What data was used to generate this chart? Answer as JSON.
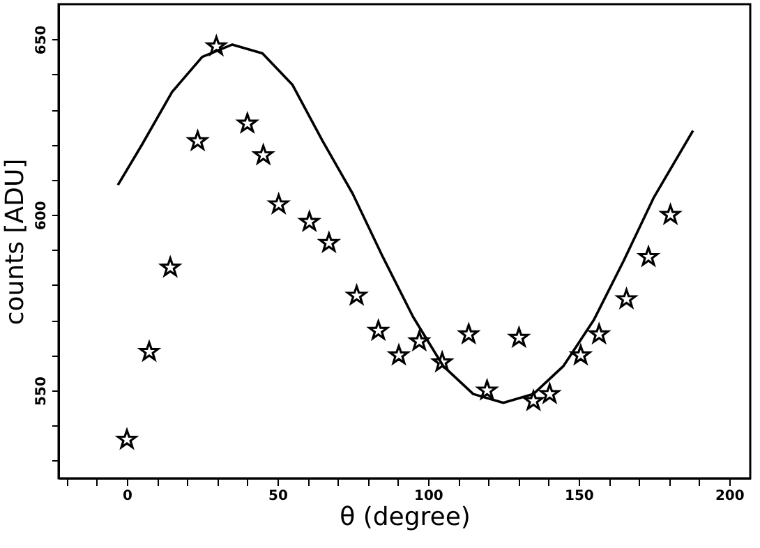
{
  "chart_data": {
    "type": "scatter",
    "xlabel": "θ (degree)",
    "ylabel": "counts [ADU]",
    "xlim": [
      -22.7,
      207
    ],
    "ylim": [
      525,
      660
    ],
    "xticks": [
      {
        "value": -20,
        "label": null
      },
      {
        "value": -10,
        "label": null
      },
      0,
      {
        "value": 10,
        "label": null
      },
      {
        "value": 20,
        "label": null
      },
      {
        "value": 30,
        "label": null
      },
      {
        "value": 40,
        "label": null
      },
      50,
      {
        "value": 60,
        "label": null
      },
      {
        "value": 70,
        "label": null
      },
      {
        "value": 80,
        "label": null
      },
      {
        "value": 90,
        "label": null
      },
      100,
      {
        "value": 110,
        "label": null
      },
      {
        "value": 120,
        "label": null
      },
      {
        "value": 130,
        "label": null
      },
      {
        "value": 140,
        "label": null
      },
      150,
      {
        "value": 160,
        "label": null
      },
      {
        "value": 170,
        "label": null
      },
      {
        "value": 180,
        "label": null
      },
      {
        "value": 190,
        "label": null
      },
      200
    ],
    "yticks": [
      {
        "value": 530,
        "label": null
      },
      {
        "value": 540,
        "label": null
      },
      550,
      {
        "value": 560,
        "label": null
      },
      {
        "value": 570,
        "label": null
      },
      {
        "value": 580,
        "label": null
      },
      {
        "value": 590,
        "label": null
      },
      600,
      {
        "value": 610,
        "label": null
      },
      {
        "value": 620,
        "label": null
      },
      {
        "value": 630,
        "label": null
      },
      {
        "value": 640,
        "label": null
      },
      650
    ],
    "grid": false,
    "series": [
      {
        "marker": "star",
        "color": "#000000",
        "x": [
          0,
          7.4,
          14.4,
          23.5,
          29.7,
          40,
          45.3,
          50.4,
          60.6,
          67.1,
          76.3,
          83.5,
          90.3,
          97.1,
          104.7,
          113.5,
          119.6,
          130.2,
          135,
          140.4,
          150.7,
          156.8,
          165.9,
          173.2,
          180.5
        ],
        "values": [
          536,
          561,
          585,
          621,
          648,
          626,
          617,
          603,
          598,
          592,
          577,
          567,
          560,
          564,
          558,
          566,
          550,
          565,
          547,
          549,
          560,
          566,
          576,
          588,
          600
        ]
      },
      {
        "type": "line",
        "marker": "none",
        "line_style": "solid",
        "color": "#000000",
        "x": [
          -3,
          5,
          15,
          25,
          35,
          45,
          55,
          65,
          75,
          85,
          95,
          105,
          115,
          125,
          135,
          145,
          155,
          165,
          175,
          188
        ],
        "values": [
          608.5,
          620,
          635,
          645,
          648.5,
          646,
          637,
          621,
          606,
          588,
          571,
          557,
          549,
          546.5,
          549,
          557,
          570,
          587,
          605,
          624
        ]
      }
    ]
  }
}
